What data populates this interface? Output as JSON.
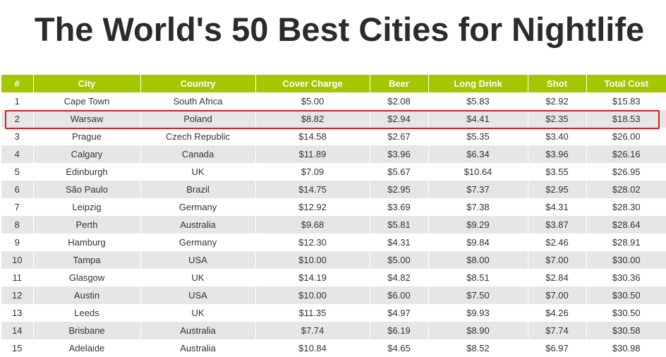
{
  "title": "The World's 50 Best Cities for Nightlife",
  "colors": {
    "header_bg": "#a3c800",
    "header_text": "#ffffff",
    "stripe": "#e6e6e6",
    "highlight": "#d42020"
  },
  "chart_data": {
    "type": "table",
    "title": "The World's 50 Best Cities for Nightlife",
    "columns": [
      "#",
      "City",
      "Country",
      "Cover Charge",
      "Beer",
      "Long Drink",
      "Shot",
      "Total Cost"
    ],
    "rows": [
      [
        "1",
        "Cape Town",
        "South Africa",
        "$5.00",
        "$2.08",
        "$5.83",
        "$2.92",
        "$15.83"
      ],
      [
        "2",
        "Warsaw",
        "Poland",
        "$8.82",
        "$2.94",
        "$4.41",
        "$2.35",
        "$18.53"
      ],
      [
        "3",
        "Prague",
        "Czech Republic",
        "$14.58",
        "$2.67",
        "$5.35",
        "$3.40",
        "$26.00"
      ],
      [
        "4",
        "Calgary",
        "Canada",
        "$11.89",
        "$3.96",
        "$6.34",
        "$3.96",
        "$26.16"
      ],
      [
        "5",
        "Edinburgh",
        "UK",
        "$7.09",
        "$5.67",
        "$10.64",
        "$3.55",
        "$26.95"
      ],
      [
        "6",
        "São Paulo",
        "Brazil",
        "$14.75",
        "$2.95",
        "$7.37",
        "$2.95",
        "$28.02"
      ],
      [
        "7",
        "Leipzig",
        "Germany",
        "$12.92",
        "$3.69",
        "$7.38",
        "$4.31",
        "$28.30"
      ],
      [
        "8",
        "Perth",
        "Australia",
        "$9.68",
        "$5.81",
        "$9.29",
        "$3.87",
        "$28.64"
      ],
      [
        "9",
        "Hamburg",
        "Germany",
        "$12.30",
        "$4.31",
        "$9.84",
        "$2.46",
        "$28.91"
      ],
      [
        "10",
        "Tampa",
        "USA",
        "$10.00",
        "$5.00",
        "$8.00",
        "$7.00",
        "$30.00"
      ],
      [
        "11",
        "Glasgow",
        "UK",
        "$14.19",
        "$4.82",
        "$8.51",
        "$2.84",
        "$30.36"
      ],
      [
        "12",
        "Austin",
        "USA",
        "$10.00",
        "$6.00",
        "$7.50",
        "$7.00",
        "$30.50"
      ],
      [
        "13",
        "Leeds",
        "UK",
        "$11.35",
        "$4.97",
        "$9.93",
        "$4.26",
        "$30.50"
      ],
      [
        "14",
        "Brisbane",
        "Australia",
        "$7.74",
        "$6.19",
        "$8.90",
        "$7.74",
        "$30.58"
      ],
      [
        "15",
        "Adelaide",
        "Australia",
        "$10.84",
        "$4.65",
        "$8.52",
        "$6.97",
        "$30.98"
      ]
    ],
    "highlighted_row": 2
  }
}
